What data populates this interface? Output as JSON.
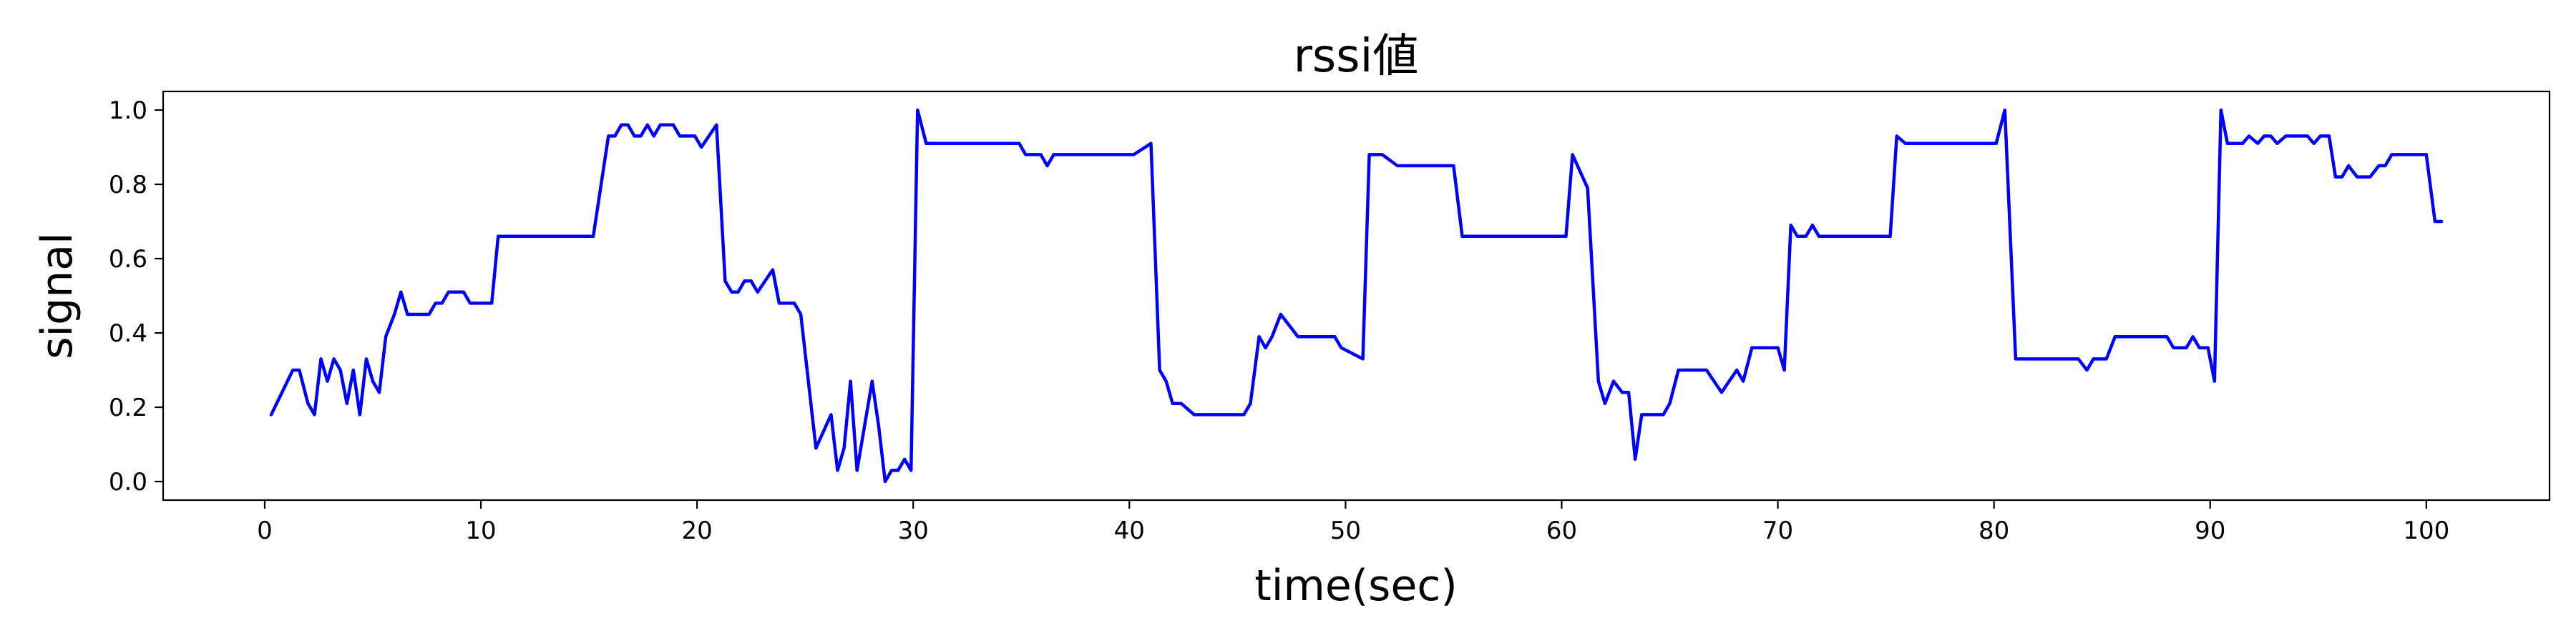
{
  "chart_data": {
    "type": "line",
    "title": "rssi値",
    "xlabel": "time(sec)",
    "ylabel": "signal",
    "xlim": [
      -4.7,
      105.7
    ],
    "ylim": [
      -0.05,
      1.05
    ],
    "xticks": [
      0,
      10,
      20,
      30,
      40,
      50,
      60,
      70,
      80,
      90,
      100
    ],
    "xtick_labels": [
      "0",
      "10",
      "20",
      "30",
      "40",
      "50",
      "60",
      "70",
      "80",
      "90",
      "100"
    ],
    "yticks": [
      0.0,
      0.2,
      0.4,
      0.6,
      0.8,
      1.0
    ],
    "ytick_labels": [
      "0.0",
      "0.2",
      "0.4",
      "0.6",
      "0.8",
      "1.0"
    ],
    "grid": false,
    "legend": "none",
    "series": [
      {
        "color": "#0000ff",
        "points": [
          [
            0.3,
            0.18
          ],
          [
            1.3,
            0.3
          ],
          [
            1.6,
            0.3
          ],
          [
            2.0,
            0.21
          ],
          [
            2.3,
            0.18
          ],
          [
            2.6,
            0.33
          ],
          [
            2.9,
            0.27
          ],
          [
            3.2,
            0.33
          ],
          [
            3.5,
            0.3
          ],
          [
            3.8,
            0.21
          ],
          [
            4.1,
            0.3
          ],
          [
            4.4,
            0.18
          ],
          [
            4.7,
            0.33
          ],
          [
            5.0,
            0.27
          ],
          [
            5.3,
            0.24
          ],
          [
            5.6,
            0.39
          ],
          [
            6.0,
            0.45
          ],
          [
            6.3,
            0.51
          ],
          [
            6.6,
            0.45
          ],
          [
            7.6,
            0.45
          ],
          [
            7.9,
            0.48
          ],
          [
            8.2,
            0.48
          ],
          [
            8.5,
            0.51
          ],
          [
            9.2,
            0.51
          ],
          [
            9.5,
            0.48
          ],
          [
            10.5,
            0.48
          ],
          [
            10.8,
            0.66
          ],
          [
            15.2,
            0.66
          ],
          [
            15.9,
            0.93
          ],
          [
            16.2,
            0.93
          ],
          [
            16.5,
            0.96
          ],
          [
            16.8,
            0.96
          ],
          [
            17.1,
            0.93
          ],
          [
            17.4,
            0.93
          ],
          [
            17.7,
            0.96
          ],
          [
            18.0,
            0.93
          ],
          [
            18.3,
            0.96
          ],
          [
            18.9,
            0.96
          ],
          [
            19.2,
            0.93
          ],
          [
            19.9,
            0.93
          ],
          [
            20.2,
            0.9
          ],
          [
            20.9,
            0.96
          ],
          [
            21.3,
            0.54
          ],
          [
            21.6,
            0.51
          ],
          [
            21.9,
            0.51
          ],
          [
            22.2,
            0.54
          ],
          [
            22.5,
            0.54
          ],
          [
            22.8,
            0.51
          ],
          [
            23.5,
            0.57
          ],
          [
            23.8,
            0.48
          ],
          [
            24.5,
            0.48
          ],
          [
            24.8,
            0.45
          ],
          [
            25.5,
            0.09
          ],
          [
            26.2,
            0.18
          ],
          [
            26.5,
            0.03
          ],
          [
            26.8,
            0.09
          ],
          [
            27.1,
            0.27
          ],
          [
            27.4,
            0.03
          ],
          [
            28.1,
            0.27
          ],
          [
            28.4,
            0.15
          ],
          [
            28.7,
            0.0
          ],
          [
            29.0,
            0.03
          ],
          [
            29.3,
            0.03
          ],
          [
            29.6,
            0.06
          ],
          [
            29.9,
            0.03
          ],
          [
            30.2,
            1.0
          ],
          [
            30.6,
            0.91
          ],
          [
            34.9,
            0.91
          ],
          [
            35.2,
            0.88
          ],
          [
            35.9,
            0.88
          ],
          [
            36.2,
            0.85
          ],
          [
            36.5,
            0.88
          ],
          [
            40.2,
            0.88
          ],
          [
            41.0,
            0.91
          ],
          [
            41.4,
            0.3
          ],
          [
            41.7,
            0.27
          ],
          [
            42.0,
            0.21
          ],
          [
            42.4,
            0.21
          ],
          [
            43.0,
            0.18
          ],
          [
            45.3,
            0.18
          ],
          [
            45.6,
            0.21
          ],
          [
            46.0,
            0.39
          ],
          [
            46.3,
            0.36
          ],
          [
            46.6,
            0.39
          ],
          [
            47.0,
            0.45
          ],
          [
            47.8,
            0.39
          ],
          [
            49.5,
            0.39
          ],
          [
            49.8,
            0.36
          ],
          [
            50.8,
            0.33
          ],
          [
            51.1,
            0.88
          ],
          [
            51.7,
            0.88
          ],
          [
            52.4,
            0.85
          ],
          [
            55.0,
            0.85
          ],
          [
            55.4,
            0.66
          ],
          [
            60.2,
            0.66
          ],
          [
            60.5,
            0.88
          ],
          [
            61.2,
            0.79
          ],
          [
            61.7,
            0.27
          ],
          [
            62.0,
            0.21
          ],
          [
            62.4,
            0.27
          ],
          [
            62.8,
            0.24
          ],
          [
            63.1,
            0.24
          ],
          [
            63.4,
            0.06
          ],
          [
            63.7,
            0.18
          ],
          [
            64.7,
            0.18
          ],
          [
            65.0,
            0.21
          ],
          [
            65.4,
            0.3
          ],
          [
            66.7,
            0.3
          ],
          [
            67.4,
            0.24
          ],
          [
            68.1,
            0.3
          ],
          [
            68.4,
            0.27
          ],
          [
            68.8,
            0.36
          ],
          [
            70.0,
            0.36
          ],
          [
            70.3,
            0.3
          ],
          [
            70.6,
            0.69
          ],
          [
            70.9,
            0.66
          ],
          [
            71.3,
            0.66
          ],
          [
            71.6,
            0.69
          ],
          [
            71.9,
            0.66
          ],
          [
            75.2,
            0.66
          ],
          [
            75.5,
            0.93
          ],
          [
            75.9,
            0.91
          ],
          [
            80.1,
            0.91
          ],
          [
            80.5,
            1.0
          ],
          [
            81.0,
            0.33
          ],
          [
            83.9,
            0.33
          ],
          [
            84.3,
            0.3
          ],
          [
            84.6,
            0.33
          ],
          [
            85.2,
            0.33
          ],
          [
            85.6,
            0.39
          ],
          [
            88.0,
            0.39
          ],
          [
            88.3,
            0.36
          ],
          [
            88.9,
            0.36
          ],
          [
            89.2,
            0.39
          ],
          [
            89.5,
            0.36
          ],
          [
            89.9,
            0.36
          ],
          [
            90.2,
            0.27
          ],
          [
            90.5,
            1.0
          ],
          [
            90.8,
            0.91
          ],
          [
            91.5,
            0.91
          ],
          [
            91.8,
            0.93
          ],
          [
            92.2,
            0.91
          ],
          [
            92.5,
            0.93
          ],
          [
            92.8,
            0.93
          ],
          [
            93.1,
            0.91
          ],
          [
            93.5,
            0.93
          ],
          [
            94.5,
            0.93
          ],
          [
            94.8,
            0.91
          ],
          [
            95.1,
            0.93
          ],
          [
            95.5,
            0.93
          ],
          [
            95.8,
            0.82
          ],
          [
            96.1,
            0.82
          ],
          [
            96.4,
            0.85
          ],
          [
            96.8,
            0.82
          ],
          [
            97.4,
            0.82
          ],
          [
            97.8,
            0.85
          ],
          [
            98.1,
            0.85
          ],
          [
            98.4,
            0.88
          ],
          [
            100.0,
            0.88
          ],
          [
            100.4,
            0.7
          ],
          [
            100.7,
            0.7
          ]
        ]
      }
    ]
  }
}
